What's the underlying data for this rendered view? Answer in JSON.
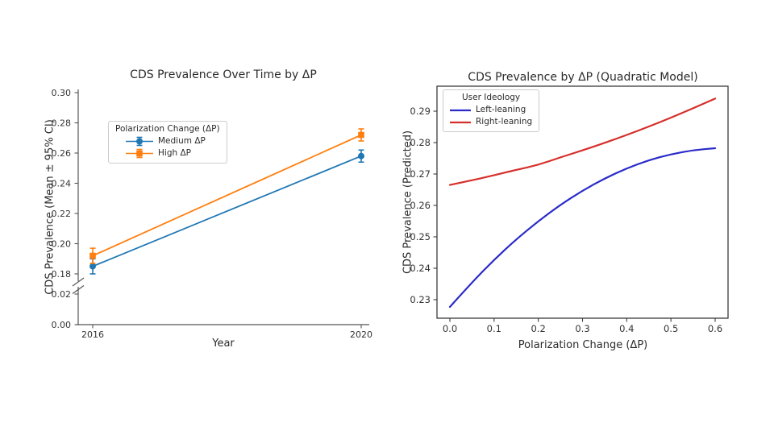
{
  "chart_data": [
    {
      "id": "cds_over_time",
      "type": "line",
      "title": "CDS Prevalence Over Time by ΔP",
      "xlabel": "Year",
      "ylabel": "CDS Prevalence (Mean ± 95% CI)",
      "categories": [
        "2016",
        "2020"
      ],
      "series": [
        {
          "name": "Medium ΔP",
          "color": "#1f77b4",
          "marker": "circle",
          "values": [
            0.185,
            0.258
          ],
          "errors": [
            0.005,
            0.004
          ]
        },
        {
          "name": "High ΔP",
          "color": "#ff7f0e",
          "marker": "square",
          "values": [
            0.192,
            0.272
          ],
          "errors": [
            0.005,
            0.004
          ]
        }
      ],
      "legend": {
        "title": "Polarization Change (ΔP)",
        "position": "upper left inside"
      },
      "y_axis": {
        "upper_ticks": [
          0.3,
          0.28,
          0.26,
          0.24,
          0.22,
          0.2,
          0.18
        ],
        "lower_ticks": [
          0.02,
          0.0
        ],
        "break_between": [
          0.02,
          0.18
        ],
        "upper_range": [
          0.18,
          0.3
        ],
        "lower_range": [
          0.0,
          0.02
        ]
      },
      "grid": false,
      "spines": "left-bottom-only"
    },
    {
      "id": "cds_by_dp_quadratic",
      "type": "line",
      "title": "CDS Prevalence by ΔP (Quadratic Model)",
      "xlabel": "Polarization Change (ΔP)",
      "ylabel": "CDS Prevalence (Predicted)",
      "x": [
        0.0,
        0.05,
        0.1,
        0.15,
        0.2,
        0.25,
        0.3,
        0.35,
        0.4,
        0.45,
        0.5,
        0.55,
        0.6
      ],
      "series": [
        {
          "name": "Left-leaning",
          "color": "#2a2ac9",
          "values": [
            0.2277,
            0.2355,
            0.2427,
            0.2492,
            0.255,
            0.2602,
            0.2647,
            0.2686,
            0.2718,
            0.2744,
            0.2763,
            0.2776,
            0.2782
          ]
        },
        {
          "name": "Right-leaning",
          "color": "#d62f2b",
          "values": [
            0.2665,
            0.268,
            0.2696,
            0.2713,
            0.2729,
            0.2753,
            0.2775,
            0.2799,
            0.2824,
            0.2851,
            0.2879,
            0.2909,
            0.294
          ]
        }
      ],
      "legend": {
        "title": "User Ideology",
        "position": "upper left inside"
      },
      "x_ticks": [
        0.0,
        0.1,
        0.2,
        0.3,
        0.4,
        0.5,
        0.6
      ],
      "y_ticks": [
        0.29,
        0.28,
        0.27,
        0.26,
        0.25,
        0.24,
        0.23
      ],
      "xlim": [
        -0.03,
        0.63
      ],
      "ylim": [
        0.224,
        0.298
      ],
      "grid": false,
      "spines": "full-box"
    }
  ]
}
